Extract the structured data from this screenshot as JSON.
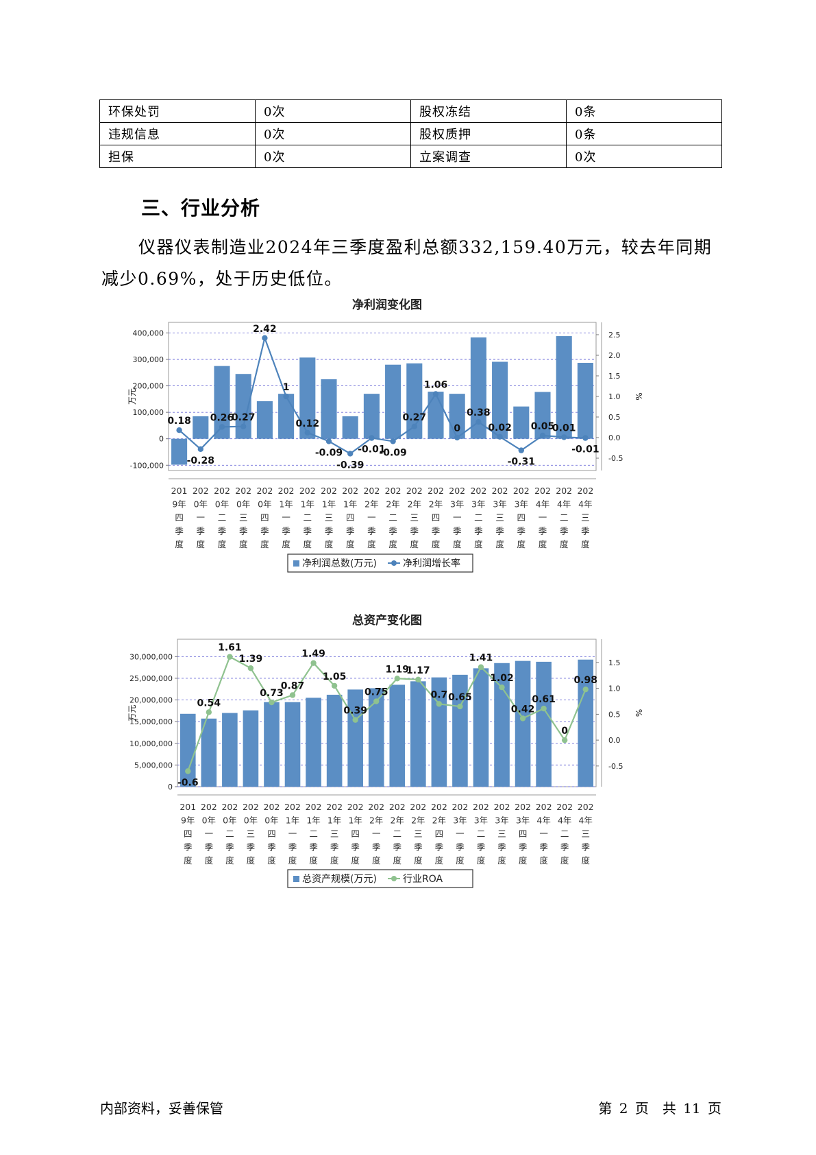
{
  "info_table": [
    [
      "环保处罚",
      "0次",
      "股权冻结",
      "0条"
    ],
    [
      "违规信息",
      "0次",
      "股权质押",
      "0条"
    ],
    [
      "担保",
      "0次",
      "立案调查",
      "0次"
    ]
  ],
  "section": {
    "title": "三、行业分析",
    "paragraph": "仪器仪表制造业2024年三季度盈利总额332,159.40万元，较去年同期减少0.69%，处于历史低位。"
  },
  "chart_data": [
    {
      "type": "bar",
      "title": "净利润变化图",
      "ylabel": "万元",
      "y2label": "%",
      "categories": [
        [
          "201",
          "9年",
          "四",
          "季",
          "度"
        ],
        [
          "202",
          "0年",
          "一",
          "季",
          "度"
        ],
        [
          "202",
          "0年",
          "二",
          "季",
          "度"
        ],
        [
          "202",
          "0年",
          "三",
          "季",
          "度"
        ],
        [
          "202",
          "0年",
          "四",
          "季",
          "度"
        ],
        [
          "202",
          "1年",
          "一",
          "季",
          "度"
        ],
        [
          "202",
          "1年",
          "二",
          "季",
          "度"
        ],
        [
          "202",
          "1年",
          "三",
          "季",
          "度"
        ],
        [
          "202",
          "1年",
          "四",
          "季",
          "度"
        ],
        [
          "202",
          "2年",
          "一",
          "季",
          "度"
        ],
        [
          "202",
          "2年",
          "二",
          "季",
          "度"
        ],
        [
          "202",
          "2年",
          "三",
          "季",
          "度"
        ],
        [
          "202",
          "2年",
          "四",
          "季",
          "度"
        ],
        [
          "202",
          "3年",
          "一",
          "季",
          "度"
        ],
        [
          "202",
          "3年",
          "二",
          "季",
          "度"
        ],
        [
          "202",
          "3年",
          "三",
          "季",
          "度"
        ],
        [
          "202",
          "3年",
          "四",
          "季",
          "度"
        ],
        [
          "202",
          "4年",
          "一",
          "季",
          "度"
        ],
        [
          "202",
          "4年",
          "二",
          "季",
          "度"
        ],
        [
          "202",
          "4年",
          "三",
          "季",
          "度"
        ]
      ],
      "ylim": [
        -120000,
        440000
      ],
      "y_ticks": [
        -100000,
        0,
        100000,
        200000,
        300000,
        400000
      ],
      "y_tick_labels": [
        "-100,000",
        "0",
        "100,000",
        "200,000",
        "300,000",
        "400,000"
      ],
      "y2lim": [
        -0.8,
        2.8
      ],
      "y2_ticks": [
        -0.5,
        0,
        0.5,
        1,
        1.5,
        2,
        2.5
      ],
      "y2_tick_labels": [
        "-0.5",
        "0.0",
        "0.5",
        "1.0",
        "1.5",
        "2.0",
        "2.5"
      ],
      "legend_position": "bottom",
      "series": [
        {
          "name": "净利润总数(万元)",
          "kind": "bar",
          "color": "#5b8ec4",
          "values": [
            -98000,
            85000,
            275000,
            245000,
            142000,
            170000,
            307000,
            225000,
            85000,
            170000,
            280000,
            285000,
            178000,
            170000,
            383000,
            291000,
            122000,
            177000,
            388000,
            287000
          ]
        },
        {
          "name": "净利润增长率",
          "kind": "line",
          "color": "#4d83bb",
          "values": [
            0.18,
            -0.28,
            0.26,
            0.27,
            2.42,
            1,
            0.12,
            -0.09,
            -0.39,
            -0.01,
            -0.09,
            0.27,
            1.06,
            0,
            0.38,
            0.02,
            -0.31,
            0.05,
            0.01,
            -0.01
          ],
          "labels": [
            "0.18",
            "-0.28",
            "0.26",
            "0.27",
            "2.42",
            "1",
            "0.12",
            "-0.09",
            "-0.39",
            "-0.01",
            "-0.09",
            "0.27",
            "1.06",
            "0",
            "0.38",
            "0.02",
            "-0.31",
            "0.05",
            "0.01",
            "-0.01"
          ]
        }
      ]
    },
    {
      "type": "bar",
      "title": "总资产变化图",
      "ylabel": "万元",
      "y2label": "%",
      "categories": [
        [
          "201",
          "9年",
          "四",
          "季",
          "度"
        ],
        [
          "202",
          "0年",
          "一",
          "季",
          "度"
        ],
        [
          "202",
          "0年",
          "二",
          "季",
          "度"
        ],
        [
          "202",
          "0年",
          "三",
          "季",
          "度"
        ],
        [
          "202",
          "0年",
          "四",
          "季",
          "度"
        ],
        [
          "202",
          "1年",
          "一",
          "季",
          "度"
        ],
        [
          "202",
          "1年",
          "二",
          "季",
          "度"
        ],
        [
          "202",
          "1年",
          "三",
          "季",
          "度"
        ],
        [
          "202",
          "1年",
          "四",
          "季",
          "度"
        ],
        [
          "202",
          "2年",
          "一",
          "季",
          "度"
        ],
        [
          "202",
          "2年",
          "二",
          "季",
          "度"
        ],
        [
          "202",
          "2年",
          "三",
          "季",
          "度"
        ],
        [
          "202",
          "2年",
          "四",
          "季",
          "度"
        ],
        [
          "202",
          "3年",
          "一",
          "季",
          "度"
        ],
        [
          "202",
          "3年",
          "二",
          "季",
          "度"
        ],
        [
          "202",
          "3年",
          "三",
          "季",
          "度"
        ],
        [
          "202",
          "3年",
          "四",
          "季",
          "度"
        ],
        [
          "202",
          "4年",
          "一",
          "季",
          "度"
        ],
        [
          "202",
          "4年",
          "二",
          "季",
          "度"
        ],
        [
          "202",
          "4年",
          "三",
          "季",
          "度"
        ]
      ],
      "ylim": [
        0,
        34000000
      ],
      "y_ticks": [
        0,
        5000000,
        10000000,
        15000000,
        20000000,
        25000000,
        30000000
      ],
      "y_tick_labels": [
        "0",
        "5,000,000",
        "10,000,000",
        "15,000,000",
        "20,000,000",
        "25,000,000",
        "30,000,000"
      ],
      "y2lim": [
        -0.9,
        1.95
      ],
      "y2_ticks": [
        -0.5,
        0,
        0.5,
        1,
        1.5
      ],
      "y2_tick_labels": [
        "-0.5",
        "0.0",
        "0.5",
        "1.0",
        "1.5"
      ],
      "legend_position": "bottom",
      "series": [
        {
          "name": "总资产规模(万元)",
          "kind": "bar",
          "color": "#5b8ec4",
          "values": [
            16800000,
            15700000,
            17000000,
            17600000,
            19500000,
            19500000,
            20500000,
            21200000,
            22400000,
            22700000,
            23500000,
            24300000,
            25200000,
            25800000,
            27300000,
            28500000,
            29000000,
            28800000,
            0,
            29300000
          ]
        },
        {
          "name": "行业ROA",
          "kind": "line",
          "color": "#8fc28f",
          "values": [
            -0.6,
            0.54,
            1.61,
            1.39,
            0.73,
            0.87,
            1.49,
            1.05,
            0.39,
            0.75,
            1.19,
            1.17,
            0.7,
            0.65,
            1.41,
            1.02,
            0.42,
            0.61,
            0,
            0.98
          ],
          "labels": [
            "-0.6",
            "0.54",
            "1.61",
            "1.39",
            "0.73",
            "0.87",
            "1.49",
            "1.05",
            "0.39",
            "0.75",
            "1.19",
            "1.17",
            "0.7",
            "0.65",
            "1.41",
            "1.02",
            "0.42",
            "0.61",
            "0",
            "0.98"
          ]
        }
      ]
    }
  ],
  "footer": {
    "left": "内部资料，妥善保管",
    "right": "第 2 页　共 11 页"
  }
}
